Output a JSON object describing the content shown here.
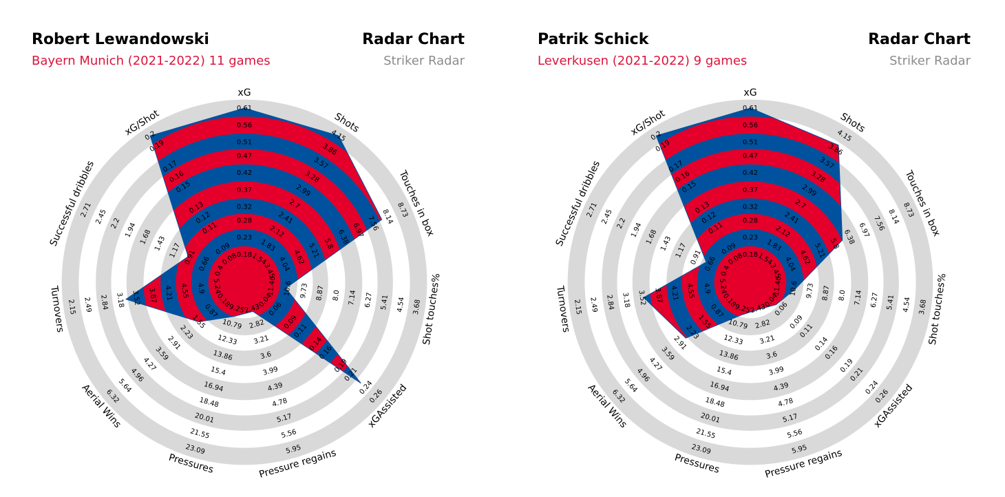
{
  "chart_data": [
    {
      "type": "radar",
      "title": "Robert Lewandowski",
      "subtitle": "Bayern Munich (2021-2022) 11 games",
      "title_right": "Radar Chart",
      "subtitle_right": "Striker Radar",
      "categories": [
        "xG",
        "Shots",
        "Touches in box",
        "Shot touches%",
        "xGAssisted",
        "Pressure regains",
        "Pressures",
        "Aerial Wins",
        "Turnovers",
        "Successful dribbles",
        "xG/Shot"
      ],
      "ranges": [
        [
          0.18,
          0.61
        ],
        [
          1.54,
          4.15
        ],
        [
          3.45,
          8.73
        ],
        [
          11.46,
          3.68
        ],
        [
          0.04,
          0.26
        ],
        [
          2.43,
          5.95
        ],
        [
          9.25,
          23.09
        ],
        [
          0.18,
          6.32
        ],
        [
          5.24,
          2.15
        ],
        [
          0.4,
          2.71
        ],
        [
          0.08,
          0.2
        ]
      ],
      "ticks": [
        [
          0.18,
          0.23,
          0.28,
          0.32,
          0.37,
          0.42,
          0.47,
          0.51,
          0.56,
          0.61
        ],
        [
          1.54,
          1.83,
          2.12,
          2.41,
          2.7,
          2.99,
          3.28,
          3.57,
          3.86,
          4.15
        ],
        [
          3.45,
          4.04,
          4.62,
          5.21,
          5.8,
          6.38,
          6.97,
          7.56,
          8.14,
          8.73
        ],
        [
          11.46,
          10.6,
          9.73,
          8.87,
          {
            "value": 8,
            "label": "8.0"
          },
          7.14,
          6.27,
          5.41,
          4.54,
          3.68
        ],
        [
          0.04,
          0.06,
          0.09,
          0.11,
          0.14,
          0.16,
          0.19,
          0.21,
          0.24,
          0.26
        ],
        [
          2.43,
          2.82,
          3.21,
          3.6,
          3.99,
          4.39,
          4.78,
          5.17,
          5.56,
          5.95
        ],
        [
          9.25,
          10.79,
          12.33,
          13.86,
          15.4,
          16.94,
          18.48,
          20.01,
          21.55,
          23.09
        ],
        [
          0.18,
          0.87,
          1.55,
          2.23,
          2.91,
          3.59,
          4.27,
          4.96,
          5.64,
          6.32
        ],
        [
          5.24,
          4.9,
          4.55,
          4.21,
          3.87,
          3.52,
          3.18,
          2.84,
          2.49,
          2.15
        ],
        [
          0.4,
          0.66,
          0.91,
          1.17,
          1.43,
          1.68,
          1.94,
          2.2,
          2.45,
          2.71
        ],
        [
          0.08,
          0.09,
          0.11,
          0.12,
          0.13,
          0.15,
          0.16,
          0.17,
          0.19,
          0.2
        ]
      ],
      "values": [
        0.61,
        4.15,
        7.9,
        10.7,
        0.23,
        2.5,
        10.0,
        1.56,
        3.3,
        0.94,
        0.2
      ],
      "colors": [
        "#00529f",
        "#e4002b"
      ],
      "ring_color": "#d9d9d9",
      "subtitle_color": "#dc143c",
      "subtitle_right_color": "#8c8c8c"
    },
    {
      "type": "radar",
      "title": "Patrik Schick",
      "subtitle": "Leverkusen (2021-2022) 9 games",
      "title_right": "Radar Chart",
      "subtitle_right": "Striker Radar",
      "categories": [
        "xG",
        "Shots",
        "Touches in box",
        "Shot touches%",
        "xGAssisted",
        "Pressure regains",
        "Pressures",
        "Aerial Wins",
        "Turnovers",
        "Successful dribbles",
        "xG/Shot"
      ],
      "ranges": [
        [
          0.18,
          0.61
        ],
        [
          1.54,
          4.15
        ],
        [
          3.45,
          8.73
        ],
        [
          11.46,
          3.68
        ],
        [
          0.04,
          0.26
        ],
        [
          2.43,
          5.95
        ],
        [
          9.25,
          23.09
        ],
        [
          0.18,
          6.32
        ],
        [
          5.24,
          2.15
        ],
        [
          0.4,
          2.71
        ],
        [
          0.08,
          0.2
        ]
      ],
      "ticks": [
        [
          0.18,
          0.23,
          0.28,
          0.32,
          0.37,
          0.42,
          0.47,
          0.51,
          0.56,
          0.61
        ],
        [
          1.54,
          1.83,
          2.12,
          2.41,
          2.7,
          2.99,
          3.28,
          3.57,
          3.86,
          4.15
        ],
        [
          3.45,
          4.04,
          4.62,
          5.21,
          5.8,
          6.38,
          6.97,
          7.56,
          8.14,
          8.73
        ],
        [
          11.46,
          10.6,
          9.73,
          8.87,
          {
            "value": 8,
            "label": "8.0"
          },
          7.14,
          6.27,
          5.41,
          4.54,
          3.68
        ],
        [
          0.04,
          0.06,
          0.09,
          0.11,
          0.14,
          0.16,
          0.19,
          0.21,
          0.24,
          0.26
        ],
        [
          2.43,
          2.82,
          3.21,
          3.6,
          3.99,
          4.39,
          4.78,
          5.17,
          5.56,
          5.95
        ],
        [
          9.25,
          10.79,
          12.33,
          13.86,
          15.4,
          16.94,
          18.48,
          20.01,
          21.55,
          23.09
        ],
        [
          0.18,
          0.87,
          1.55,
          2.23,
          2.91,
          3.59,
          4.27,
          4.96,
          5.64,
          6.32
        ],
        [
          5.24,
          4.9,
          4.55,
          4.21,
          3.87,
          3.52,
          3.18,
          2.84,
          2.49,
          2.15
        ],
        [
          0.4,
          0.66,
          0.91,
          1.17,
          1.43,
          1.68,
          1.94,
          2.2,
          2.45,
          2.71
        ],
        [
          0.08,
          0.09,
          0.11,
          0.12,
          0.13,
          0.15,
          0.16,
          0.17,
          0.19,
          0.2
        ]
      ],
      "values": [
        0.61,
        3.95,
        6.1,
        10.5,
        0.05,
        2.45,
        9.9,
        2.6,
        3.55,
        0.73,
        0.2
      ],
      "colors": [
        "#00529f",
        "#e4002b"
      ],
      "ring_color": "#d9d9d9",
      "subtitle_color": "#dc143c",
      "subtitle_right_color": "#8c8c8c"
    }
  ]
}
